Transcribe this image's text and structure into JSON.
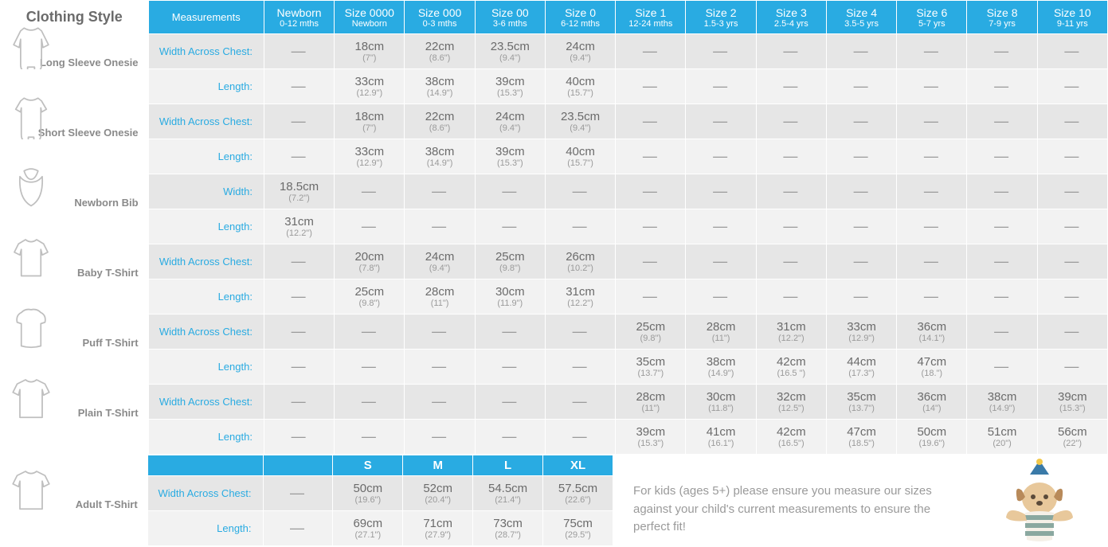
{
  "colors": {
    "header_bg": "#29abe2",
    "row_a": "#e6e6e6",
    "row_b": "#f2f2f2",
    "text_grey": "#7a7a7a",
    "accent": "#29abe2",
    "icon_stroke": "#bfbfbf"
  },
  "header": {
    "style_col": "Clothing Style",
    "meas_col": "Measurements",
    "sizes": [
      {
        "top": "Newborn",
        "sub": "0-12 mths"
      },
      {
        "top": "Size 0000",
        "sub": "Newborn"
      },
      {
        "top": "Size 000",
        "sub": "0-3 mths"
      },
      {
        "top": "Size 00",
        "sub": "3-6 mths"
      },
      {
        "top": "Size 0",
        "sub": "6-12 mths"
      },
      {
        "top": "Size 1",
        "sub": "12-24 mths"
      },
      {
        "top": "Size 2",
        "sub": "1.5-3 yrs"
      },
      {
        "top": "Size 3",
        "sub": "2.5-4 yrs"
      },
      {
        "top": "Size 4",
        "sub": "3.5-5 yrs"
      },
      {
        "top": "Size 6",
        "sub": "5-7 yrs"
      },
      {
        "top": "Size 8",
        "sub": "7-9 yrs"
      },
      {
        "top": "Size 10",
        "sub": "9-11 yrs"
      }
    ]
  },
  "styles": [
    {
      "name": "Long Sleeve Onesie",
      "icon": "long-sleeve-onesie-icon",
      "rows": [
        {
          "label": "Width Across Chest:",
          "vals": [
            null,
            {
              "cm": "18cm",
              "in": "(7\")"
            },
            {
              "cm": "22cm",
              "in": "(8.6\")"
            },
            {
              "cm": "23.5cm",
              "in": "(9.4\")"
            },
            {
              "cm": "24cm",
              "in": "(9.4\")"
            },
            null,
            null,
            null,
            null,
            null,
            null,
            null
          ]
        },
        {
          "label": "Length:",
          "vals": [
            null,
            {
              "cm": "33cm",
              "in": "(12.9\")"
            },
            {
              "cm": "38cm",
              "in": "(14.9\")"
            },
            {
              "cm": "39cm",
              "in": "(15.3\")"
            },
            {
              "cm": "40cm",
              "in": "(15.7\")"
            },
            null,
            null,
            null,
            null,
            null,
            null,
            null
          ]
        }
      ]
    },
    {
      "name": "Short Sleeve Onesie",
      "icon": "short-sleeve-onesie-icon",
      "rows": [
        {
          "label": "Width Across Chest:",
          "vals": [
            null,
            {
              "cm": "18cm",
              "in": "(7\")"
            },
            {
              "cm": "22cm",
              "in": "(8.6\")"
            },
            {
              "cm": "24cm",
              "in": "(9.4\")"
            },
            {
              "cm": "23.5cm",
              "in": "(9.4\")"
            },
            null,
            null,
            null,
            null,
            null,
            null,
            null
          ]
        },
        {
          "label": "Length:",
          "vals": [
            null,
            {
              "cm": "33cm",
              "in": "(12.9\")"
            },
            {
              "cm": "38cm",
              "in": "(14.9\")"
            },
            {
              "cm": "39cm",
              "in": "(15.3\")"
            },
            {
              "cm": "40cm",
              "in": "(15.7\")"
            },
            null,
            null,
            null,
            null,
            null,
            null,
            null
          ]
        }
      ]
    },
    {
      "name": "Newborn Bib",
      "icon": "bib-icon",
      "rows": [
        {
          "label": "Width:",
          "vals": [
            {
              "cm": "18.5cm",
              "in": "(7.2\")"
            },
            null,
            null,
            null,
            null,
            null,
            null,
            null,
            null,
            null,
            null,
            null
          ]
        },
        {
          "label": "Length:",
          "vals": [
            {
              "cm": "31cm",
              "in": "(12.2\")"
            },
            null,
            null,
            null,
            null,
            null,
            null,
            null,
            null,
            null,
            null,
            null
          ]
        }
      ]
    },
    {
      "name": "Baby T-Shirt",
      "icon": "baby-tshirt-icon",
      "rows": [
        {
          "label": "Width Across Chest:",
          "vals": [
            null,
            {
              "cm": "20cm",
              "in": "(7.8\")"
            },
            {
              "cm": "24cm",
              "in": "(9.4\")"
            },
            {
              "cm": "25cm",
              "in": "(9.8\")"
            },
            {
              "cm": "26cm",
              "in": "(10.2\")"
            },
            null,
            null,
            null,
            null,
            null,
            null,
            null
          ]
        },
        {
          "label": "Length:",
          "vals": [
            null,
            {
              "cm": "25cm",
              "in": "(9.8\")"
            },
            {
              "cm": "28cm",
              "in": "(11\")"
            },
            {
              "cm": "30cm",
              "in": "(11.9\")"
            },
            {
              "cm": "31cm",
              "in": "(12.2\")"
            },
            null,
            null,
            null,
            null,
            null,
            null,
            null
          ]
        }
      ]
    },
    {
      "name": "Puff T-Shirt",
      "icon": "puff-tshirt-icon",
      "rows": [
        {
          "label": "Width Across Chest:",
          "vals": [
            null,
            null,
            null,
            null,
            null,
            {
              "cm": "25cm",
              "in": "(9.8\")"
            },
            {
              "cm": "28cm",
              "in": "(11\")"
            },
            {
              "cm": "31cm",
              "in": "(12.2\")"
            },
            {
              "cm": "33cm",
              "in": "(12.9\")"
            },
            {
              "cm": "36cm",
              "in": "(14.1\")"
            },
            null,
            null
          ]
        },
        {
          "label": "Length:",
          "vals": [
            null,
            null,
            null,
            null,
            null,
            {
              "cm": "35cm",
              "in": "(13.7\")"
            },
            {
              "cm": "38cm",
              "in": "(14.9\")"
            },
            {
              "cm": "42cm",
              "in": "(16.5 \")"
            },
            {
              "cm": "44cm",
              "in": "(17.3\")"
            },
            {
              "cm": "47cm",
              "in": "(18.\")"
            },
            null,
            null
          ]
        }
      ]
    },
    {
      "name": "Plain T-Shirt",
      "icon": "plain-tshirt-icon",
      "rows": [
        {
          "label": "Width Across Chest:",
          "vals": [
            null,
            null,
            null,
            null,
            null,
            {
              "cm": "28cm",
              "in": "(11\")"
            },
            {
              "cm": "30cm",
              "in": "(11.8\")"
            },
            {
              "cm": "32cm",
              "in": "(12.5\")"
            },
            {
              "cm": "35cm",
              "in": "(13.7\")"
            },
            {
              "cm": "36cm",
              "in": "(14\")"
            },
            {
              "cm": "38cm",
              "in": "(14.9\")"
            },
            {
              "cm": "39cm",
              "in": "(15.3\")"
            }
          ]
        },
        {
          "label": "Length:",
          "vals": [
            null,
            null,
            null,
            null,
            null,
            {
              "cm": "39cm",
              "in": "(15.3\")"
            },
            {
              "cm": "41cm",
              "in": "(16.1\")"
            },
            {
              "cm": "42cm",
              "in": "(16.5\")"
            },
            {
              "cm": "47cm",
              "in": "(18.5\")"
            },
            {
              "cm": "50cm",
              "in": "(19.6\")"
            },
            {
              "cm": "51cm",
              "in": "(20\")"
            },
            {
              "cm": "56cm",
              "in": "(22\")"
            }
          ]
        }
      ]
    }
  ],
  "adult": {
    "name": "Adult T-Shirt",
    "icon": "adult-tshirt-icon",
    "header_sizes": [
      "S",
      "M",
      "L",
      "XL"
    ],
    "rows": [
      {
        "label": "Width Across Chest:",
        "vals": [
          null,
          {
            "cm": "50cm",
            "in": "(19.6\")"
          },
          {
            "cm": "52cm",
            "in": "(20.4\")"
          },
          {
            "cm": "54.5cm",
            "in": "(21.4\")"
          },
          {
            "cm": "57.5cm",
            "in": "(22.6\")"
          }
        ]
      },
      {
        "label": "Length:",
        "vals": [
          null,
          {
            "cm": "69cm",
            "in": "(27.1\")"
          },
          {
            "cm": "71cm",
            "in": "(27.9\")"
          },
          {
            "cm": "73cm",
            "in": "(28.7\")"
          },
          {
            "cm": "75cm",
            "in": "(29.5\")"
          }
        ]
      }
    ]
  },
  "note": "For kids (ages 5+) please ensure you measure our sizes against your child's current measure­ments to ensure the perfect fit!"
}
